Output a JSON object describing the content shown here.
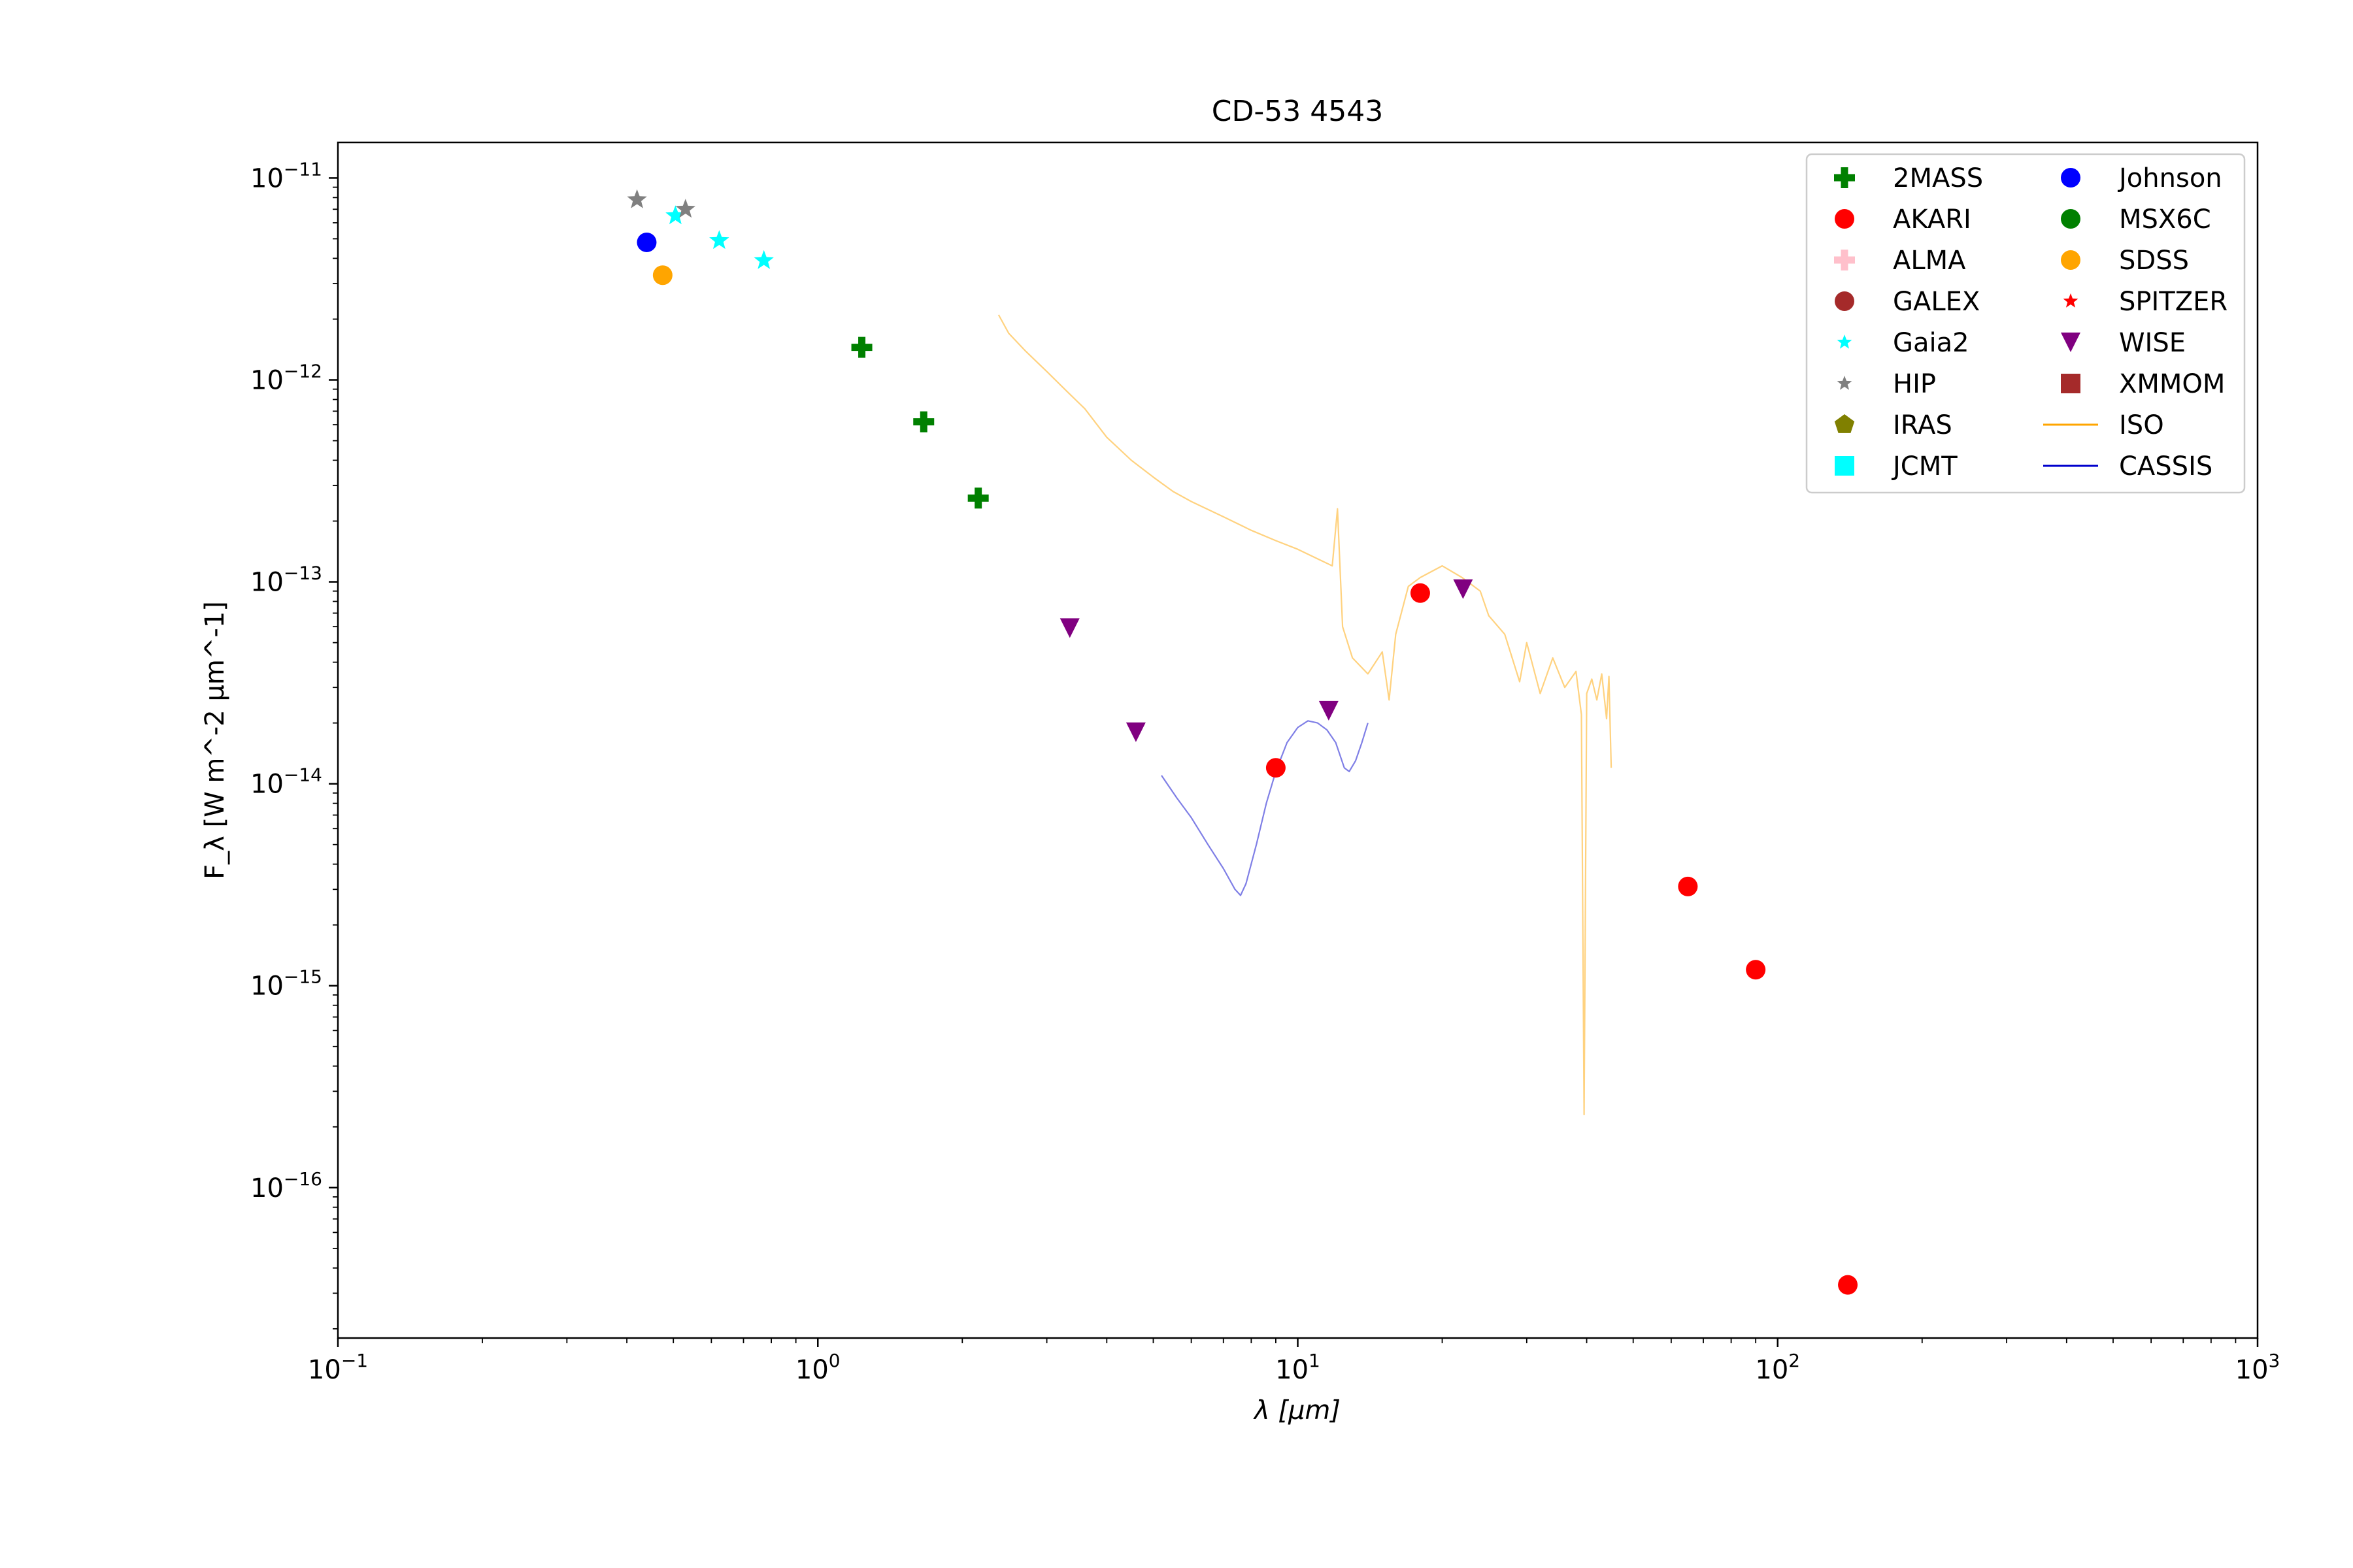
{
  "chart_data": {
    "type": "scatter",
    "title": "CD-53 4543",
    "xlabel": "λ [μm]",
    "ylabel": "F_λ [W m^-2 μm^-1]",
    "xscale": "log",
    "yscale": "log",
    "xlim": [
      0.1,
      1000
    ],
    "ylim": [
      1.8e-17,
      1.5e-11
    ],
    "grid": false,
    "legend_position": "top-right",
    "legend_columns": 2,
    "x_ticks": [
      {
        "value": 0.1,
        "base": "10",
        "exp": "−1"
      },
      {
        "value": 1,
        "base": "10",
        "exp": "0"
      },
      {
        "value": 10,
        "base": "10",
        "exp": "1"
      },
      {
        "value": 100,
        "base": "10",
        "exp": "2"
      },
      {
        "value": 1000,
        "base": "10",
        "exp": "3"
      }
    ],
    "y_ticks": [
      {
        "value": 1e-11,
        "base": "10",
        "exp": "−11"
      },
      {
        "value": 1e-12,
        "base": "10",
        "exp": "−12"
      },
      {
        "value": 1e-13,
        "base": "10",
        "exp": "−13"
      },
      {
        "value": 1e-14,
        "base": "10",
        "exp": "−14"
      },
      {
        "value": 1e-15,
        "base": "10",
        "exp": "−15"
      },
      {
        "value": 1e-16,
        "base": "10",
        "exp": "−16"
      }
    ],
    "legend": [
      {
        "name": "2MASS",
        "marker": "plus",
        "color": "#008000"
      },
      {
        "name": "AKARI",
        "marker": "circle",
        "color": "#ff0000"
      },
      {
        "name": "ALMA",
        "marker": "plus",
        "color": "#ffc0cb"
      },
      {
        "name": "GALEX",
        "marker": "circle",
        "color": "#a52a2a"
      },
      {
        "name": "Gaia2",
        "marker": "star",
        "color": "#00ffff"
      },
      {
        "name": "HIP",
        "marker": "star",
        "color": "#808080"
      },
      {
        "name": "IRAS",
        "marker": "pentagon",
        "color": "#808000"
      },
      {
        "name": "JCMT",
        "marker": "square",
        "color": "#00ffff"
      },
      {
        "name": "Johnson",
        "marker": "circle",
        "color": "#0000ff"
      },
      {
        "name": "MSX6C",
        "marker": "circle",
        "color": "#008000"
      },
      {
        "name": "SDSS",
        "marker": "circle",
        "color": "#ffa500"
      },
      {
        "name": "SPITZER",
        "marker": "star",
        "color": "#ff0000"
      },
      {
        "name": "WISE",
        "marker": "triangle-down",
        "color": "#800080"
      },
      {
        "name": "XMMOM",
        "marker": "square",
        "color": "#a52a2a"
      },
      {
        "name": "ISO",
        "marker": "line",
        "color": "#ffa500"
      },
      {
        "name": "CASSIS",
        "marker": "line",
        "color": "#0000cd"
      }
    ],
    "series": [
      {
        "name": "2MASS",
        "marker": "plus",
        "color": "#008000",
        "points": [
          [
            1.235,
            1.45e-12
          ],
          [
            1.662,
            6.2e-13
          ],
          [
            2.159,
            2.6e-13
          ]
        ]
      },
      {
        "name": "AKARI",
        "marker": "circle",
        "color": "#ff0000",
        "points": [
          [
            9.0,
            1.2e-14
          ],
          [
            18.0,
            8.8e-14
          ],
          [
            65.0,
            3.1e-15
          ],
          [
            90.0,
            1.2e-15
          ],
          [
            140.0,
            3.3e-17
          ]
        ]
      },
      {
        "name": "Gaia2",
        "marker": "star",
        "color": "#00ffff",
        "points": [
          [
            0.505,
            6.5e-12
          ],
          [
            0.623,
            4.9e-12
          ],
          [
            0.772,
            3.9e-12
          ]
        ]
      },
      {
        "name": "HIP",
        "marker": "star",
        "color": "#808080",
        "points": [
          [
            0.42,
            7.8e-12
          ],
          [
            0.53,
            7e-12
          ]
        ]
      },
      {
        "name": "Johnson",
        "marker": "circle",
        "color": "#0000ff",
        "points": [
          [
            0.44,
            4.8e-12
          ]
        ]
      },
      {
        "name": "SDSS",
        "marker": "circle",
        "color": "#ffa500",
        "points": [
          [
            0.475,
            3.3e-12
          ]
        ]
      },
      {
        "name": "WISE",
        "marker": "triangle-down",
        "color": "#800080",
        "points": [
          [
            3.35,
            5.9e-14
          ],
          [
            4.6,
            1.8e-14
          ],
          [
            11.6,
            2.3e-14
          ],
          [
            22.1,
            9.2e-14
          ]
        ]
      }
    ],
    "spectra": [
      {
        "name": "ISO",
        "color": "#ffa500",
        "points": [
          [
            2.38,
            2.1e-12
          ],
          [
            2.5,
            1.7e-12
          ],
          [
            2.7,
            1.4e-12
          ],
          [
            3.0,
            1.1e-12
          ],
          [
            3.3,
            8.8e-13
          ],
          [
            3.6,
            7.2e-13
          ],
          [
            4.0,
            5.2e-13
          ],
          [
            4.5,
            4e-13
          ],
          [
            5.0,
            3.3e-13
          ],
          [
            5.5,
            2.8e-13
          ],
          [
            6.0,
            2.5e-13
          ],
          [
            7.0,
            2.1e-13
          ],
          [
            8.0,
            1.8e-13
          ],
          [
            9.0,
            1.6e-13
          ],
          [
            10.0,
            1.45e-13
          ],
          [
            11.0,
            1.3e-13
          ],
          [
            11.8,
            1.2e-13
          ],
          [
            12.1,
            2.3e-13
          ],
          [
            12.4,
            6e-14
          ],
          [
            13.0,
            4.2e-14
          ],
          [
            14.0,
            3.5e-14
          ],
          [
            15.0,
            4.5e-14
          ],
          [
            15.5,
            2.6e-14
          ],
          [
            16.0,
            5.5e-14
          ],
          [
            17.0,
            9.5e-14
          ],
          [
            18.0,
            1.05e-13
          ],
          [
            20.0,
            1.2e-13
          ],
          [
            22.0,
            1.05e-13
          ],
          [
            24.0,
            9e-14
          ],
          [
            25.0,
            6.8e-14
          ],
          [
            27.0,
            5.5e-14
          ],
          [
            29.0,
            3.2e-14
          ],
          [
            30.0,
            5e-14
          ],
          [
            32.0,
            2.8e-14
          ],
          [
            34.0,
            4.2e-14
          ],
          [
            36.0,
            3e-14
          ],
          [
            38.0,
            3.6e-14
          ],
          [
            39.0,
            2.2e-14
          ],
          [
            39.5,
            2.3e-16
          ],
          [
            40.0,
            2.8e-14
          ],
          [
            41.0,
            3.3e-14
          ],
          [
            42.0,
            2.6e-14
          ],
          [
            43.0,
            3.5e-14
          ],
          [
            44.0,
            2.1e-14
          ],
          [
            44.5,
            3.4e-14
          ],
          [
            45.0,
            1.2e-14
          ]
        ]
      },
      {
        "name": "CASSIS",
        "color": "#0000cd",
        "points": [
          [
            5.2,
            1.1e-14
          ],
          [
            5.6,
            8.5e-15
          ],
          [
            6.0,
            6.8e-15
          ],
          [
            6.5,
            5e-15
          ],
          [
            7.0,
            3.8e-15
          ],
          [
            7.4,
            3e-15
          ],
          [
            7.6,
            2.8e-15
          ],
          [
            7.8,
            3.2e-15
          ],
          [
            8.2,
            5e-15
          ],
          [
            8.6,
            8e-15
          ],
          [
            9.0,
            1.15e-14
          ],
          [
            9.5,
            1.6e-14
          ],
          [
            10.0,
            1.9e-14
          ],
          [
            10.5,
            2.05e-14
          ],
          [
            11.0,
            2e-14
          ],
          [
            11.5,
            1.85e-14
          ],
          [
            12.0,
            1.6e-14
          ],
          [
            12.5,
            1.2e-14
          ],
          [
            12.8,
            1.15e-14
          ],
          [
            13.2,
            1.3e-14
          ],
          [
            13.6,
            1.6e-14
          ],
          [
            14.0,
            2e-14
          ]
        ]
      }
    ]
  }
}
